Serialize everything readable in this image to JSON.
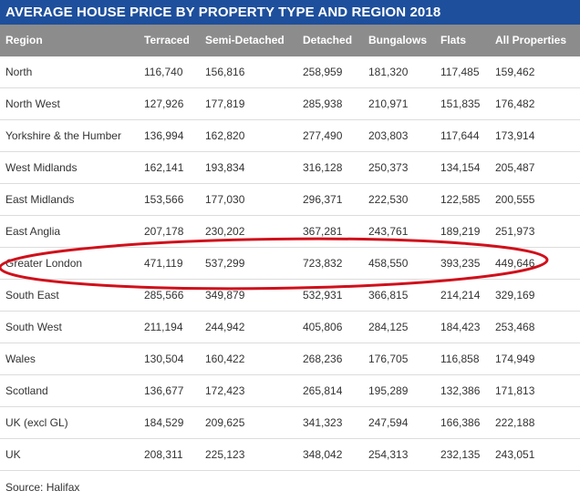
{
  "title": "AVERAGE HOUSE PRICE BY PROPERTY TYPE AND REGION 2018",
  "source": "Source: Halifax",
  "colors": {
    "title_bg": "#1e4f9c",
    "header_bg": "#8c8c8c",
    "highlight": "#d0101b"
  },
  "chart_data": {
    "type": "table",
    "title": "AVERAGE HOUSE PRICE BY PROPERTY TYPE AND REGION 2018",
    "columns": [
      "Region",
      "Terraced",
      "Semi-Detached",
      "Detached",
      "Bungalows",
      "Flats",
      "All Properties"
    ],
    "rows": [
      [
        "North",
        "116,740",
        "156,816",
        "258,959",
        "181,320",
        "117,485",
        "159,462"
      ],
      [
        "North West",
        "127,926",
        "177,819",
        "285,938",
        "210,971",
        "151,835",
        "176,482"
      ],
      [
        "Yorkshire & the Humber",
        "136,994",
        "162,820",
        "277,490",
        "203,803",
        "117,644",
        "173,914"
      ],
      [
        "West Midlands",
        "162,141",
        "193,834",
        "316,128",
        "250,373",
        "134,154",
        "205,487"
      ],
      [
        "East Midlands",
        "153,566",
        "177,030",
        "296,371",
        "222,530",
        "122,585",
        "200,555"
      ],
      [
        "East Anglia",
        "207,178",
        "230,202",
        "367,281",
        "243,761",
        "189,219",
        "251,973"
      ],
      [
        "Greater London",
        "471,119",
        "537,299",
        "723,832",
        "458,550",
        "393,235",
        "449,646"
      ],
      [
        "South East",
        "285,566",
        "349,879",
        "532,931",
        "366,815",
        "214,214",
        "329,169"
      ],
      [
        "South West",
        "211,194",
        "244,942",
        "405,806",
        "284,125",
        "184,423",
        "253,468"
      ],
      [
        "Wales",
        "130,504",
        "160,422",
        "268,236",
        "176,705",
        "116,858",
        "174,949"
      ],
      [
        "Scotland",
        "136,677",
        "172,423",
        "265,814",
        "195,289",
        "132,386",
        "171,813"
      ],
      [
        "UK (excl GL)",
        "184,529",
        "209,625",
        "341,323",
        "247,594",
        "166,386",
        "222,188"
      ],
      [
        "UK",
        "208,311",
        "225,123",
        "348,042",
        "254,313",
        "232,135",
        "243,051"
      ]
    ],
    "highlighted_row": "Greater London"
  }
}
